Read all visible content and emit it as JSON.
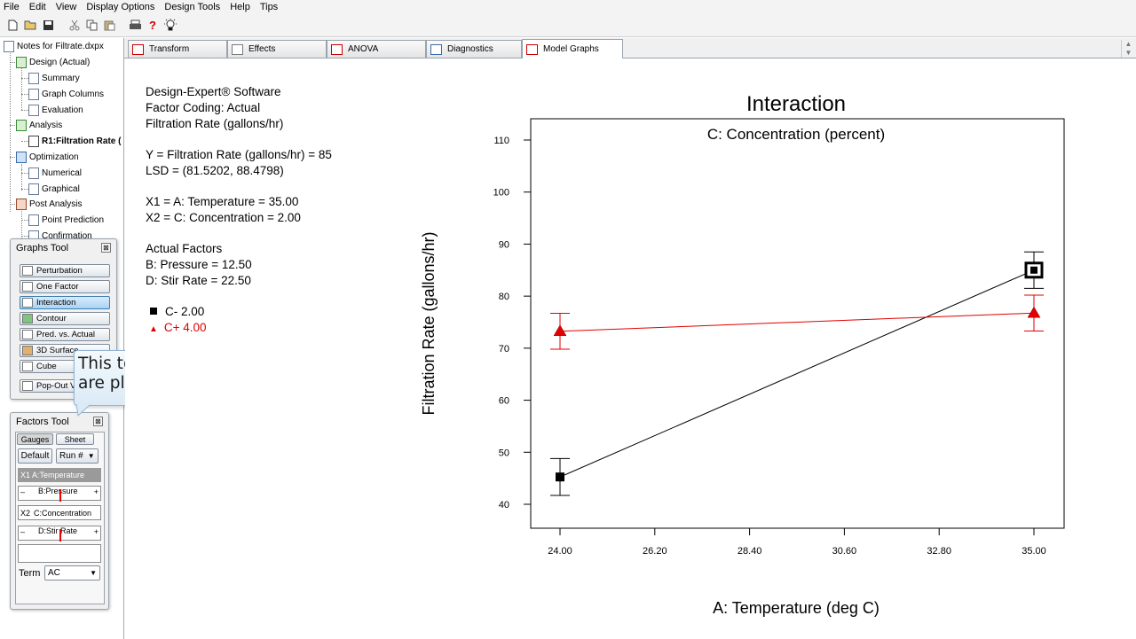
{
  "menu": [
    "File",
    "Edit",
    "View",
    "Display Options",
    "Design Tools",
    "Help",
    "Tips"
  ],
  "toolbar": {
    "icons": [
      "new-file-icon",
      "open-folder-icon",
      "save-icon",
      "cut-icon",
      "copy-icon",
      "paste-icon",
      "print-icon",
      "help-icon",
      "tip-bulb-icon"
    ]
  },
  "tree": {
    "root": "Notes for Filtrate.dxpx",
    "design": "Design (Actual)",
    "summary": "Summary",
    "graph_columns": "Graph Columns",
    "evaluation": "Evaluation",
    "analysis": "Analysis",
    "r1": "R1:Filtration Rate (",
    "optimization": "Optimization",
    "numerical": "Numerical",
    "graphical": "Graphical",
    "post_analysis": "Post Analysis",
    "point_prediction": "Point Prediction",
    "confirmation": "Confirmation"
  },
  "graphs_tool": {
    "title": "Graphs Tool",
    "close": "⊠",
    "buttons": [
      "Perturbation",
      "One Factor",
      "Interaction",
      "Contour",
      "Pred. vs. Actual",
      "3D Surface",
      "Cube"
    ],
    "popout": "Pop-Out V"
  },
  "callout": {
    "line1": "This tool controls which factor(s)",
    "line2": "are plotted on the graph."
  },
  "factors_tool": {
    "title": "Factors Tool",
    "close": "⊠",
    "gauges": "Gauges",
    "sheet": "Sheet",
    "default": "Default",
    "run": "Run #",
    "x1": "X1  A:Temperature",
    "b": "B:Pressure",
    "x2_tag": "X2",
    "x2": "C:Concentration",
    "d": "D:Stir Rate",
    "minus": "–",
    "plus": "+",
    "term_label": "Term",
    "term_value": "AC"
  },
  "tabs": [
    "Transform",
    "Effects",
    "ANOVA",
    "Diagnostics",
    "Model Graphs"
  ],
  "info": {
    "l1": "Design-Expert® Software",
    "l2": "Factor Coding: Actual",
    "l3": "Filtration Rate (gallons/hr)",
    "l4": "Y = Filtration Rate (gallons/hr) = 85",
    "l5": "LSD = (81.5202, 88.4798)",
    "l6": "X1 = A: Temperature = 35.00",
    "l7": "X2 = C: Concentration = 2.00",
    "l8": "Actual Factors",
    "l9": "B: Pressure = 12.50",
    "l10": "D: Stir Rate = 22.50",
    "legend_minus": "C- 2.00",
    "legend_plus": "C+ 4.00"
  },
  "chart_data": {
    "type": "line",
    "title": "Interaction",
    "subtitle": "C: Concentration (percent)",
    "xlabel": "A: Temperature (deg C)",
    "ylabel": "Filtration Rate (gallons/hr)",
    "xlim": [
      24.0,
      35.0
    ],
    "ylim": [
      40,
      110
    ],
    "xticks": [
      "24.00",
      "26.20",
      "28.40",
      "30.60",
      "32.80",
      "35.00"
    ],
    "yticks": [
      "40",
      "50",
      "60",
      "70",
      "80",
      "90",
      "100",
      "110"
    ],
    "series": [
      {
        "name": "C- 2.00",
        "color": "#000000",
        "marker": "square",
        "x": [
          24.0,
          35.0
        ],
        "y": [
          45.25,
          85.0
        ],
        "lsd_low": [
          41.7,
          81.5
        ],
        "lsd_high": [
          48.8,
          88.5
        ]
      },
      {
        "name": "C+ 4.00",
        "color": "#e00000",
        "marker": "triangle",
        "x": [
          24.0,
          35.0
        ],
        "y": [
          73.25,
          76.75
        ],
        "lsd_low": [
          69.8,
          73.3
        ],
        "lsd_high": [
          76.7,
          80.2
        ]
      }
    ],
    "highlight_point": {
      "series": 0,
      "index": 1
    }
  }
}
